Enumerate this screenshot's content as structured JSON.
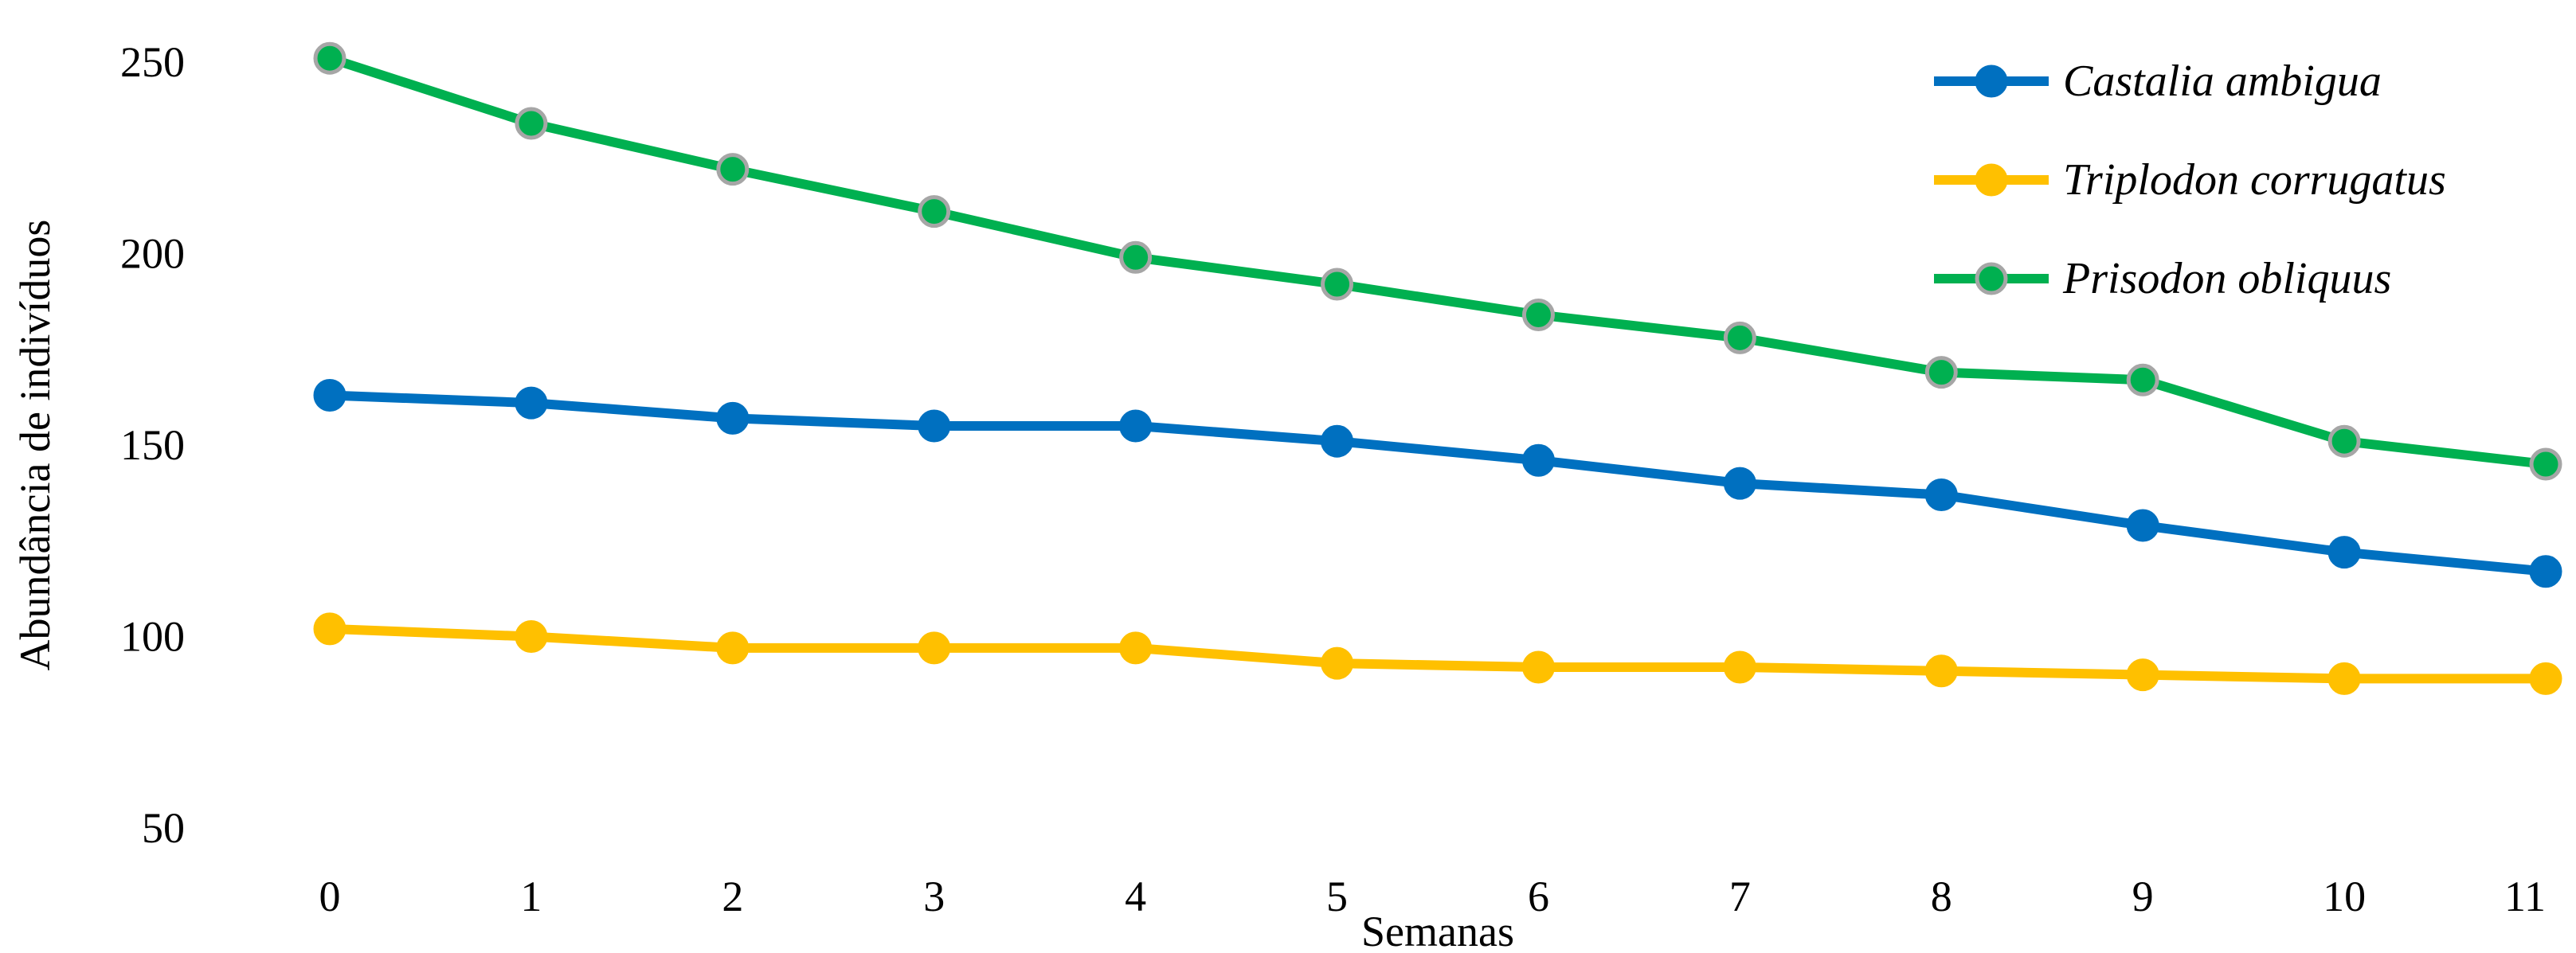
{
  "chart_data": {
    "type": "line",
    "title": "",
    "xlabel": "Semanas",
    "ylabel": "Abundância de indivíduos",
    "x": [
      0,
      1,
      2,
      3,
      4,
      5,
      6,
      7,
      8,
      9,
      10,
      11
    ],
    "xlim": [
      0,
      11
    ],
    "ylim": [
      50,
      250
    ],
    "yticks": [
      50,
      100,
      150,
      200,
      250
    ],
    "grid": false,
    "legend_position": "top-right",
    "series": [
      {
        "name": "Castalia ambigua",
        "color": "#0070c0",
        "marker_edge": "#0070c0",
        "values": [
          163,
          161,
          157,
          155,
          155,
          151,
          146,
          140,
          137,
          129,
          122,
          117
        ]
      },
      {
        "name": "Triplodon corrugatus",
        "color": "#ffc000",
        "marker_edge": "#ffc000",
        "values": [
          102,
          100,
          97,
          97,
          97,
          93,
          92,
          92,
          91,
          90,
          89,
          89
        ]
      },
      {
        "name": "Prisodon obliquus",
        "color": "#00b050",
        "marker_edge": "#a6a6a6",
        "values": [
          251,
          234,
          222,
          211,
          199,
          192,
          184,
          178,
          169,
          167,
          151,
          145
        ]
      }
    ]
  }
}
